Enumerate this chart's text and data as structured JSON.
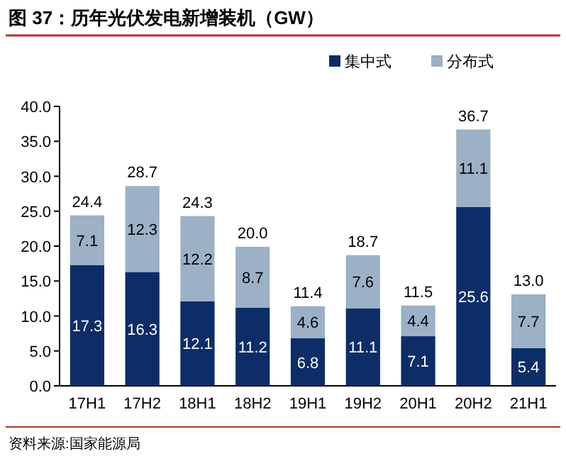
{
  "chart_data": {
    "type": "bar",
    "title": "图 37：历年光伏发电新增装机（GW）",
    "categories": [
      "17H1",
      "17H2",
      "18H1",
      "18H2",
      "19H1",
      "19H2",
      "20H1",
      "20H2",
      "21H1"
    ],
    "series": [
      {
        "name": "集中式",
        "color": "#0c2d67",
        "values": [
          17.3,
          16.3,
          12.1,
          11.2,
          6.8,
          11.1,
          7.1,
          25.6,
          5.4
        ]
      },
      {
        "name": "分布式",
        "color": "#9cb0c6",
        "values": [
          7.1,
          12.3,
          12.2,
          8.7,
          4.6,
          7.6,
          4.4,
          11.1,
          7.7
        ]
      }
    ],
    "stacked": true,
    "data_labels": true,
    "totals": [
      "24.4",
      "28.7",
      "24.3",
      "20.0",
      "11.4",
      "18.7",
      "11.5",
      "36.7",
      "13.0"
    ],
    "ylim": [
      0,
      40
    ],
    "yticks": [
      {
        "value": 0,
        "label": "0.0"
      },
      {
        "value": 5,
        "label": "5.0"
      },
      {
        "value": 10,
        "label": "10.0"
      },
      {
        "value": 15,
        "label": "15.0"
      },
      {
        "value": 20,
        "label": "20.0"
      },
      {
        "value": 25,
        "label": "25.0"
      },
      {
        "value": 30,
        "label": "30.0"
      },
      {
        "value": 35,
        "label": "35.0"
      },
      {
        "value": 40,
        "label": "40.0"
      }
    ],
    "legend": "top right",
    "annotations": [
      "资料来源:国家能源局"
    ]
  }
}
